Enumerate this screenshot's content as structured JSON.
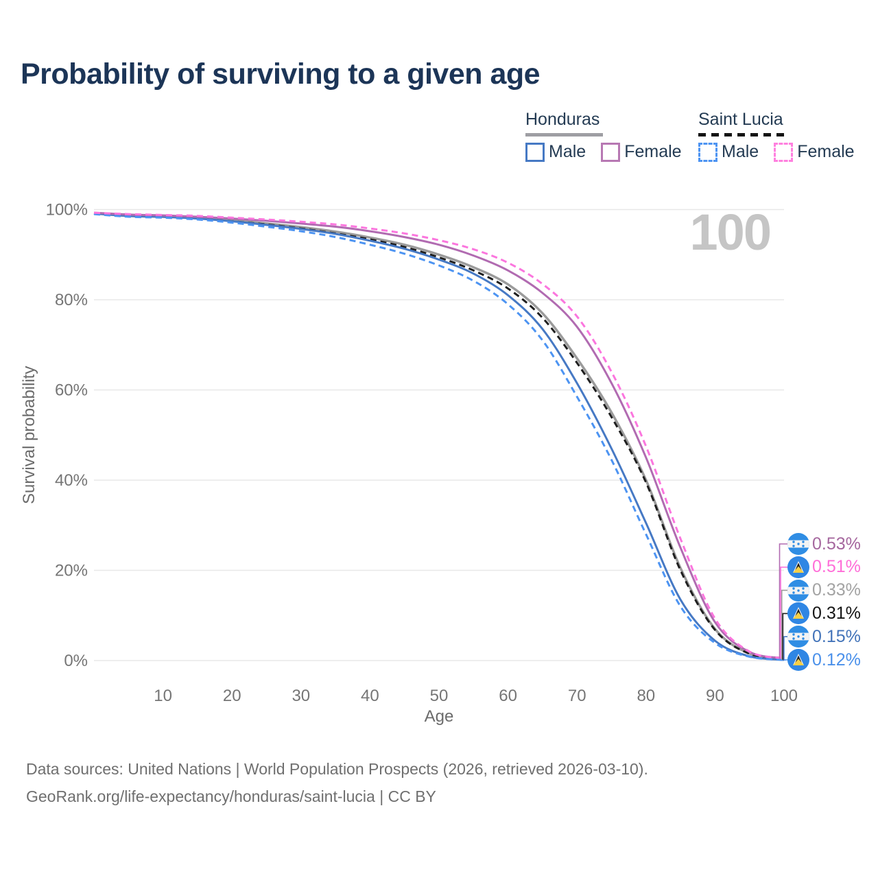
{
  "page": {
    "title": "Probability of surviving to a given age"
  },
  "legend": {
    "groups": [
      {
        "country": "Honduras",
        "line_style": "solid",
        "underline_color": "#9e9ea3",
        "items": [
          {
            "label": "Male",
            "color": "#4679c4",
            "dashed": false
          },
          {
            "label": "Female",
            "color": "#b778b3",
            "dashed": false
          }
        ]
      },
      {
        "country": "Saint Lucia",
        "line_style": "dashed",
        "underline_color": "#141414",
        "items": [
          {
            "label": "Male",
            "color": "#4d94f2",
            "dashed": true
          },
          {
            "label": "Female",
            "color": "#ff80df",
            "dashed": true
          }
        ]
      }
    ]
  },
  "chart_data": {
    "type": "line",
    "title": "Probability of surviving to a given age",
    "xlabel": "Age",
    "ylabel": "Survival probability",
    "xlim": [
      0,
      100
    ],
    "ylim": [
      0,
      100
    ],
    "grid": "horizontal",
    "annotation": "100",
    "x_ticks": [
      10,
      20,
      30,
      40,
      50,
      60,
      70,
      80,
      90,
      100
    ],
    "y_ticks": [
      {
        "value": 0,
        "label": "0%"
      },
      {
        "value": 20,
        "label": "20%"
      },
      {
        "value": 40,
        "label": "40%"
      },
      {
        "value": 60,
        "label": "60%"
      },
      {
        "value": 80,
        "label": "80%"
      },
      {
        "value": 100,
        "label": "100%"
      }
    ],
    "x": [
      0,
      5,
      10,
      15,
      20,
      25,
      30,
      35,
      40,
      45,
      50,
      55,
      60,
      65,
      70,
      75,
      80,
      85,
      90,
      95,
      100
    ],
    "series": [
      {
        "name": "Honduras Total",
        "country": "Honduras",
        "color": "#9b9b9b",
        "dashed": false,
        "width": 3.5,
        "values": [
          99.2,
          98.6,
          98.4,
          98.1,
          97.6,
          96.9,
          96.1,
          95.1,
          93.8,
          92.2,
          90.0,
          87.2,
          83.4,
          77.0,
          67.0,
          55.0,
          40.0,
          20.5,
          7.0,
          1.55,
          0.33
        ]
      },
      {
        "name": "Saint Lucia Total",
        "country": "Saint Lucia",
        "color": "#1f1f1f",
        "dashed": true,
        "width": 3,
        "values": [
          99.1,
          98.5,
          98.3,
          98.0,
          97.4,
          96.7,
          95.8,
          94.7,
          93.4,
          91.7,
          89.4,
          86.5,
          82.5,
          76.0,
          66.0,
          54.0,
          39.5,
          20.0,
          6.8,
          1.5,
          0.31
        ]
      },
      {
        "name": "Honduras Male",
        "country": "Honduras",
        "color": "#4679c4",
        "dashed": false,
        "width": 3,
        "values": [
          99.1,
          98.6,
          98.4,
          98.0,
          97.4,
          96.6,
          95.7,
          94.6,
          93.1,
          91.3,
          88.9,
          85.8,
          81.0,
          73.5,
          61.5,
          47.0,
          30.5,
          13.5,
          4.4,
          0.95,
          0.15
        ]
      },
      {
        "name": "Saint Lucia Male",
        "country": "Saint Lucia",
        "color": "#4d94f2",
        "dashed": true,
        "width": 3,
        "values": [
          99.0,
          98.4,
          98.2,
          97.8,
          97.1,
          96.2,
          95.2,
          93.9,
          92.2,
          90.2,
          87.6,
          84.2,
          79.0,
          71.0,
          58.5,
          44.5,
          28.0,
          12.0,
          3.9,
          0.85,
          0.12
        ]
      },
      {
        "name": "Honduras Female",
        "country": "Honduras",
        "color": "#b16bb1",
        "dashed": false,
        "width": 3,
        "values": [
          99.3,
          98.9,
          98.7,
          98.4,
          98.0,
          97.5,
          96.9,
          96.2,
          95.2,
          93.9,
          92.2,
          89.8,
          86.5,
          81.5,
          74.0,
          61.5,
          45.0,
          25.0,
          8.5,
          1.9,
          0.53
        ]
      },
      {
        "name": "Saint Lucia Female",
        "country": "Saint Lucia",
        "color": "#fb76de",
        "dashed": true,
        "width": 3,
        "values": [
          99.3,
          99.0,
          98.8,
          98.6,
          98.2,
          97.8,
          97.3,
          96.7,
          95.8,
          94.7,
          93.2,
          91.2,
          88.2,
          83.5,
          76.3,
          64.0,
          47.5,
          27.0,
          9.3,
          2.0,
          0.51
        ]
      }
    ],
    "end_labels": [
      {
        "text": "0.53%",
        "color": "#a5679e",
        "flag": "honduras",
        "series": "Honduras Female",
        "end_value": 0.53
      },
      {
        "text": "0.51%",
        "color": "#ff6ed8",
        "flag": "saintlucia",
        "series": "Saint Lucia Female",
        "end_value": 0.51
      },
      {
        "text": "0.33%",
        "color": "#a3a3a3",
        "flag": "honduras",
        "series": "Honduras Total",
        "end_value": 0.33
      },
      {
        "text": "0.31%",
        "color": "#141414",
        "flag": "saintlucia",
        "series": "Saint Lucia Total",
        "end_value": 0.31
      },
      {
        "text": "0.15%",
        "color": "#4273b9",
        "flag": "honduras",
        "series": "Honduras Male",
        "end_value": 0.15
      },
      {
        "text": "0.12%",
        "color": "#4a90ea",
        "flag": "saintlucia",
        "series": "Saint Lucia Male",
        "end_value": 0.12
      }
    ]
  },
  "footer": {
    "line1": "Data sources: United Nations | World Population Prospects (2026, retrieved 2026-03-10).",
    "line2": "GeoRank.org/life-expectancy/honduras/saint-lucia | CC BY"
  }
}
